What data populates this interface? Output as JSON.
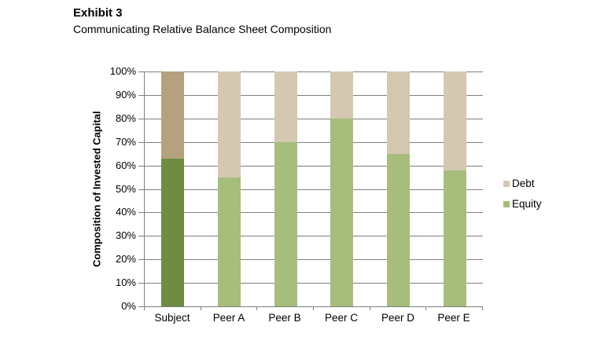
{
  "header": {
    "title": "Exhibit 3",
    "subtitle": "Communicating Relative Balance Sheet Composition"
  },
  "chart_data": {
    "type": "bar",
    "stacked": true,
    "title": "Communicating Relative Balance Sheet Composition",
    "xlabel": "",
    "ylabel": "Composition of Invested Capital",
    "categories": [
      "Subject",
      "Peer A",
      "Peer B",
      "Peer C",
      "Peer D",
      "Peer E"
    ],
    "series": [
      {
        "name": "Equity",
        "values": [
          63,
          55,
          70,
          80,
          65,
          58
        ]
      },
      {
        "name": "Debt",
        "values": [
          37,
          45,
          30,
          20,
          35,
          42
        ]
      }
    ],
    "ylim": [
      0,
      100
    ],
    "ytick_step": 10,
    "yticks": [
      "0%",
      "10%",
      "20%",
      "30%",
      "40%",
      "50%",
      "60%",
      "70%",
      "80%",
      "90%",
      "100%"
    ],
    "grid": true,
    "legend_position": "right",
    "legend": [
      {
        "label": "Debt",
        "color": "#d4c8b1"
      },
      {
        "label": "Equity",
        "color": "#a6bd7c"
      }
    ],
    "highlight_category": "Subject",
    "colors": {
      "equity": "#a6bd7c",
      "debt": "#d4c8b1",
      "equity_highlight": "#708c42",
      "debt_highlight": "#b4a17e",
      "gridline": "#7f7f7f",
      "text": "#000000"
    }
  }
}
